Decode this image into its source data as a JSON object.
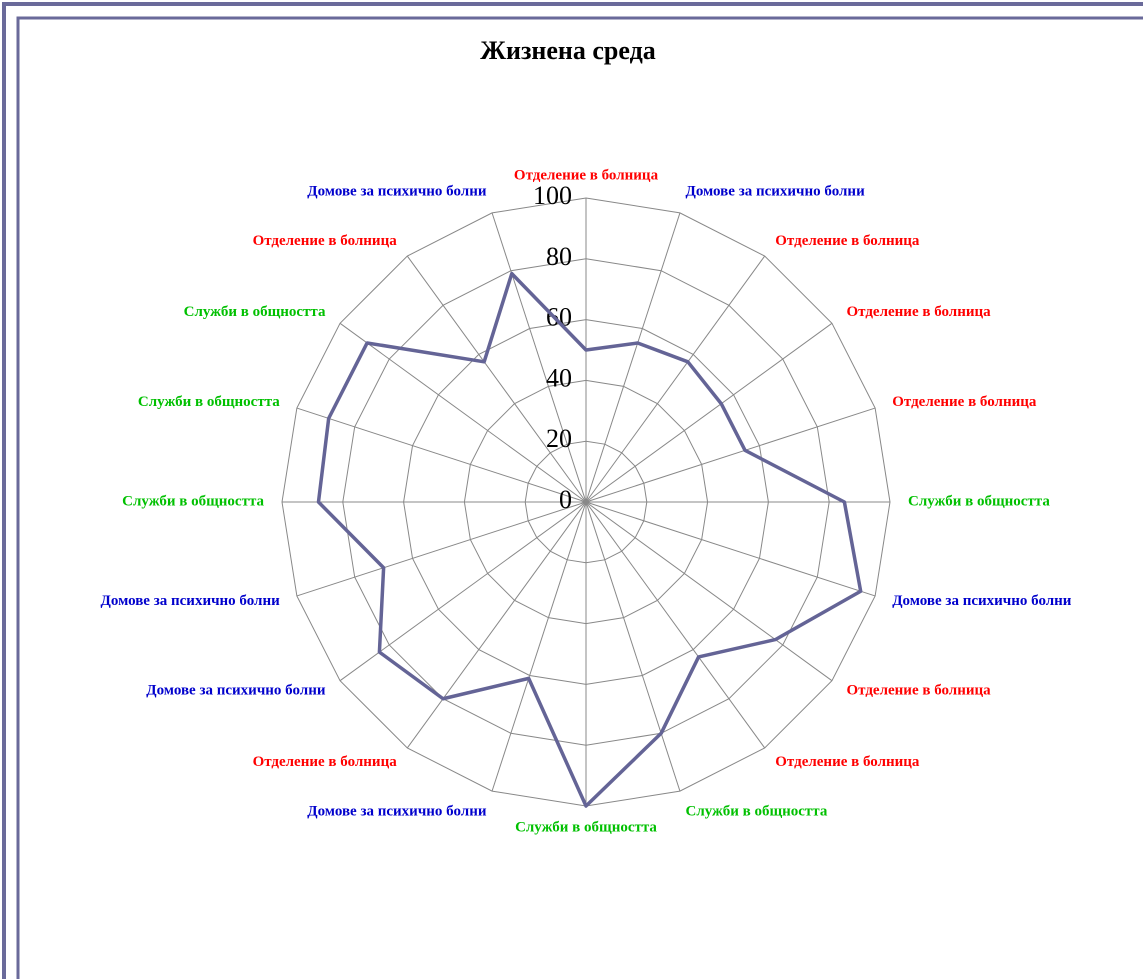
{
  "chart_data": {
    "type": "radar",
    "title": "Жизнена среда",
    "categories": [
      "Отделение в болница",
      "Домове за психично болни",
      "Отделение в болница",
      "Отделение в болница",
      "Отделение в болница",
      "Служби в общността",
      "Домове за психично болни",
      "Отделение в болница",
      "Отделение в болница",
      "Служби в общността",
      "Служби в общността",
      "Домове за психично болни",
      "Отделение в болница",
      "Домове за психично болни",
      "Домове за психично болни",
      "Служби в общността",
      "Служби в общността",
      "Служби в общността",
      "Отделение в болница",
      "Домове за психично болни"
    ],
    "category_colors": [
      "#ff0000",
      "#0000cc",
      "#ff0000",
      "#ff0000",
      "#ff0000",
      "#00c000",
      "#0000cc",
      "#ff0000",
      "#ff0000",
      "#00c000",
      "#00c000",
      "#0000cc",
      "#ff0000",
      "#0000cc",
      "#0000cc",
      "#00c000",
      "#00c000",
      "#00c000",
      "#ff0000",
      "#0000cc"
    ],
    "values": [
      50,
      55,
      57,
      55,
      55,
      85,
      95,
      77,
      63,
      80,
      100,
      61,
      80,
      84,
      70,
      88,
      89,
      89,
      57,
      79
    ],
    "color": "#646496",
    "ylim": [
      0,
      100
    ],
    "yticks": [
      0,
      20,
      40,
      60,
      80,
      100
    ],
    "grid": true
  }
}
